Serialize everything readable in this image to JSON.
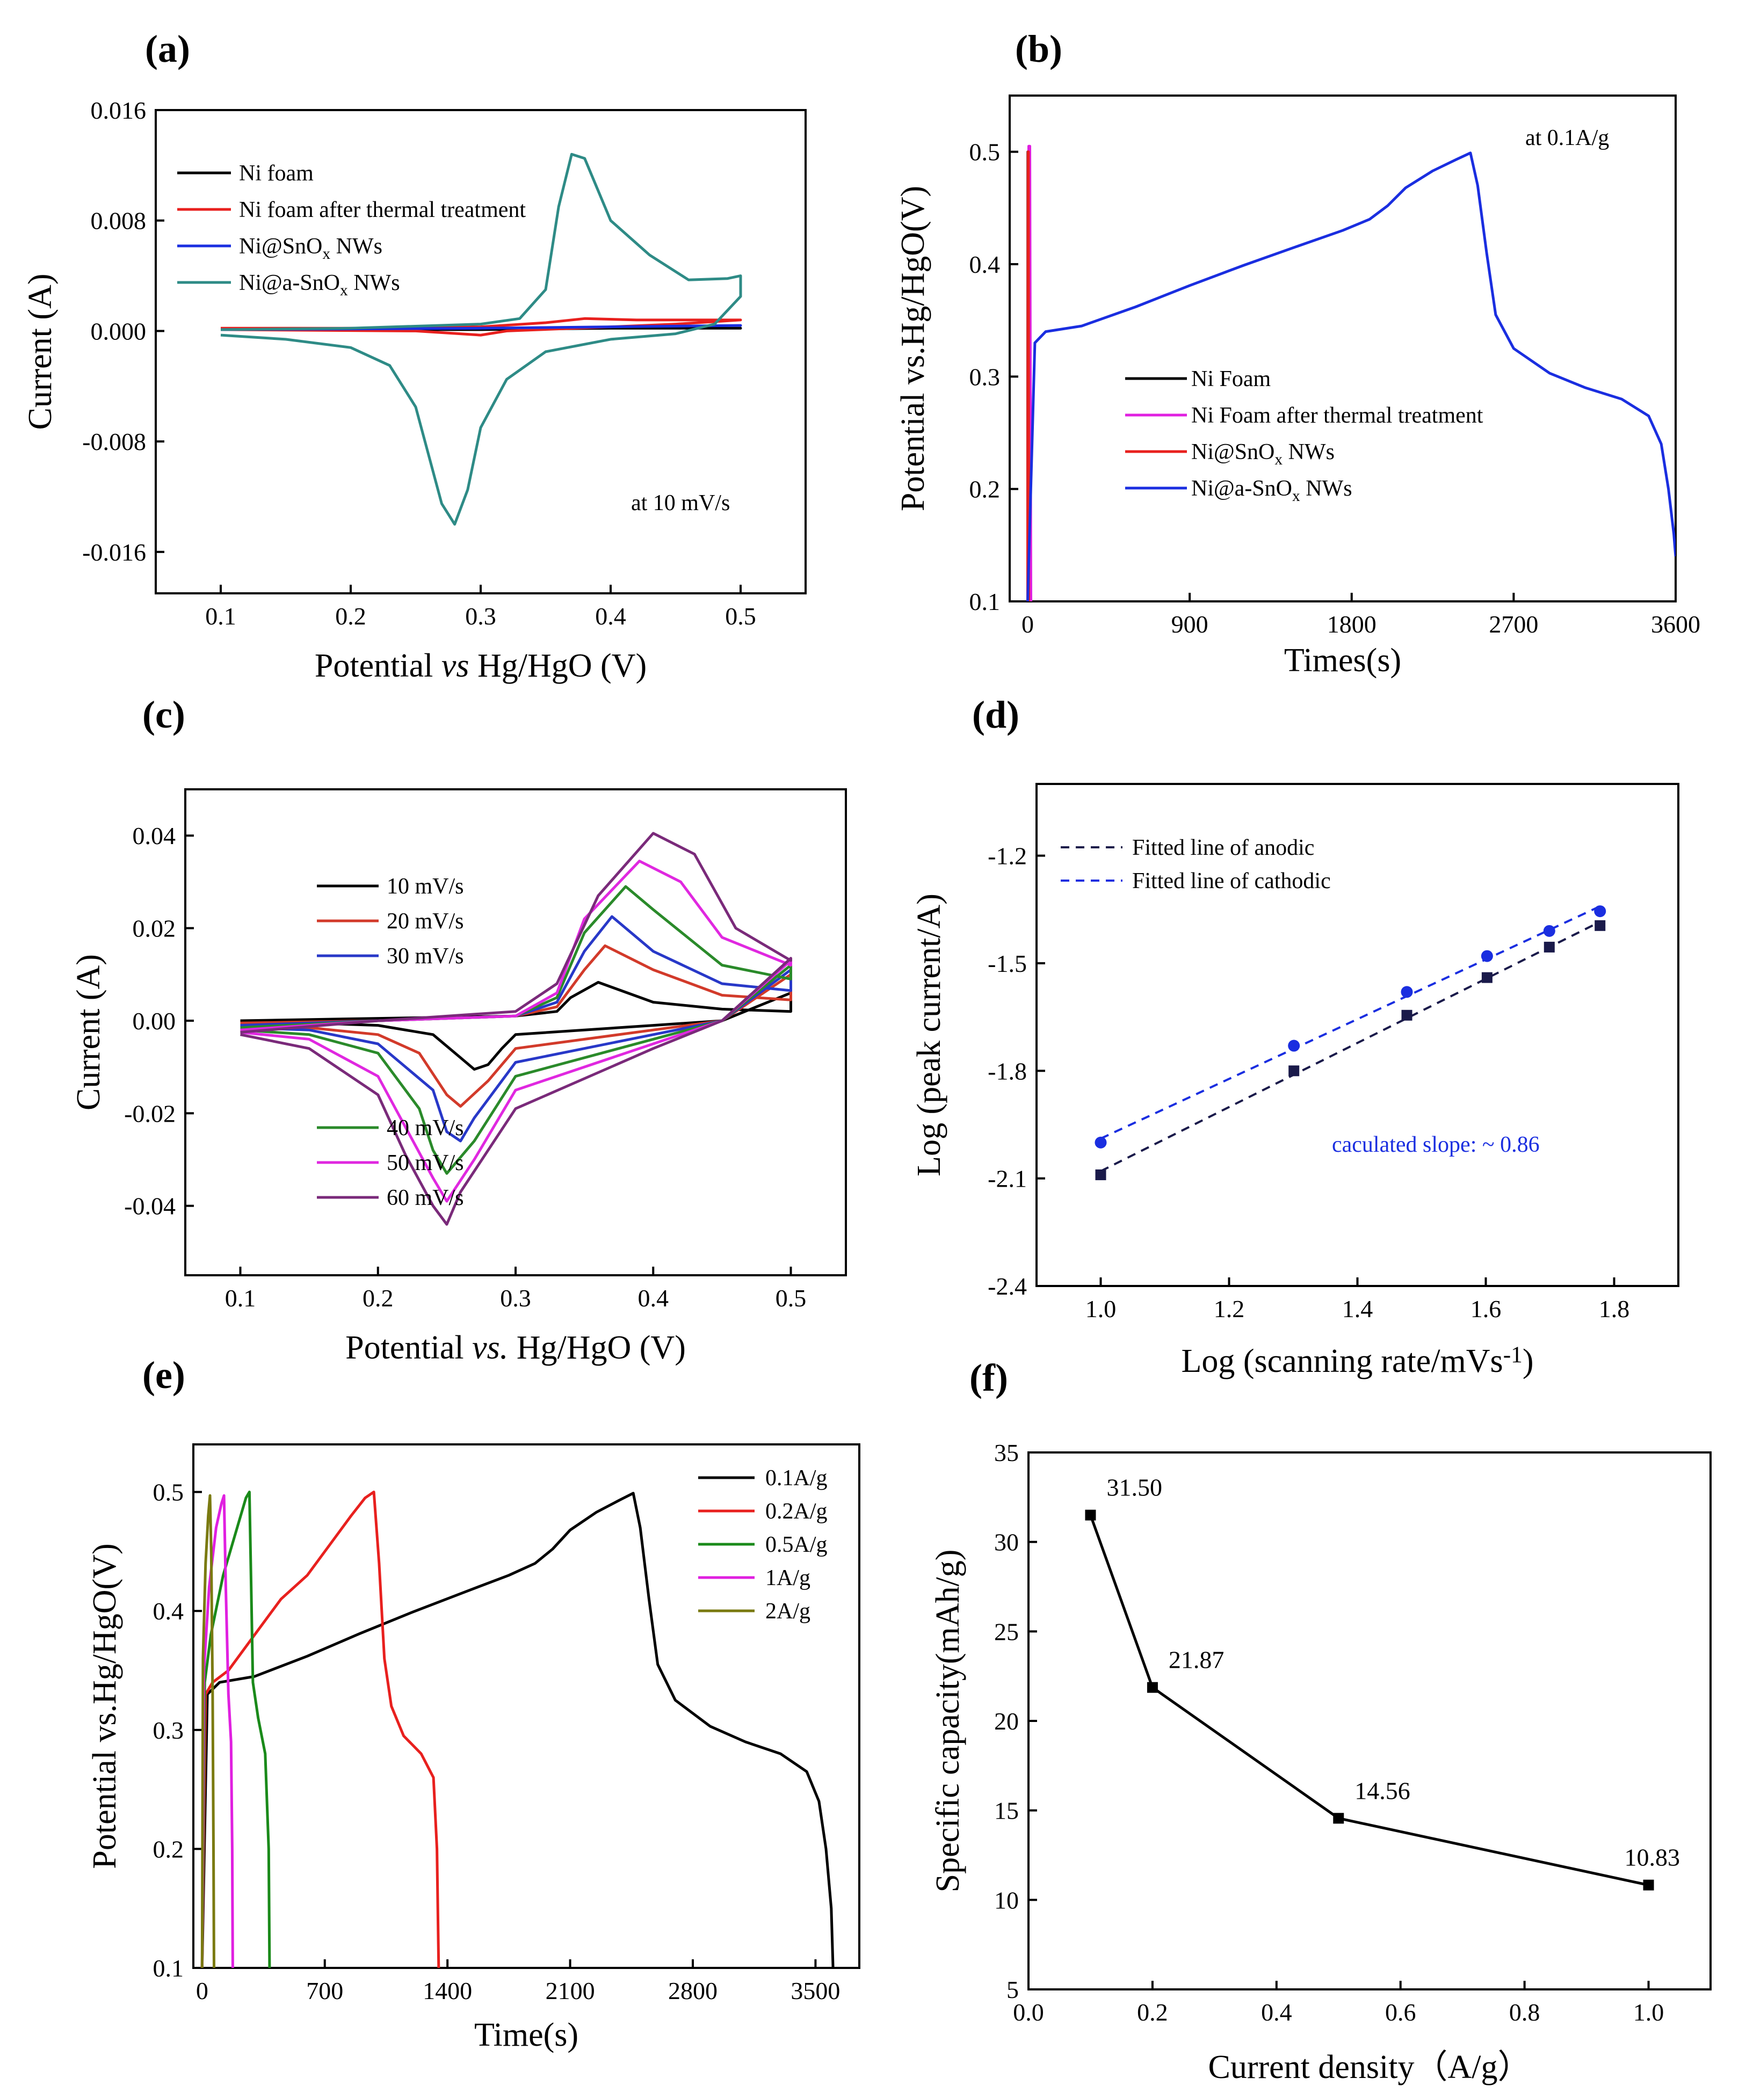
{
  "figure": {
    "panels": [
      "(a)",
      "(b)",
      "(c)",
      "(d)",
      "(e)",
      "(f)"
    ]
  },
  "chart_data": [
    {
      "id": "a",
      "panel_label": "(a)",
      "type": "line",
      "title": "",
      "xlabel": "Potential vs Hg/HgO (V)",
      "ylabel": "Current (A)",
      "xlim": [
        0.05,
        0.55
      ],
      "ylim": [
        -0.019,
        0.016
      ],
      "xticks": [
        0.1,
        0.2,
        0.3,
        0.4,
        0.5
      ],
      "xtick_labels": [
        "0.1",
        "0.2",
        "0.3",
        "0.4",
        "0.5"
      ],
      "yticks": [
        -0.016,
        -0.008,
        0.0,
        0.008,
        0.016
      ],
      "ytick_labels": [
        "-0.016",
        "-0.008",
        "0.000",
        "0.008",
        "0.016"
      ],
      "annotation": "at 10 mV/s",
      "legend_position": "top-left",
      "series": [
        {
          "name": "Ni foam",
          "color": "#000000",
          "x": [
            0.1,
            0.2,
            0.3,
            0.4,
            0.5,
            0.4,
            0.3,
            0.2,
            0.1
          ],
          "y": [
            0.0001,
            0.0001,
            0.0001,
            0.0002,
            0.0002,
            0.0002,
            0.0001,
            0.0001,
            0.0001
          ]
        },
        {
          "name": "Ni foam after thermal treatment",
          "color": "#e8201e",
          "x": [
            0.1,
            0.25,
            0.3,
            0.35,
            0.38,
            0.42,
            0.5,
            0.45,
            0.4,
            0.32,
            0.3,
            0.25,
            0.1
          ],
          "y": [
            0.0002,
            0.0002,
            0.0003,
            0.0006,
            0.0009,
            0.0008,
            0.0008,
            0.0005,
            0.0003,
            0.0,
            -0.0003,
            0.0,
            0.0001
          ]
        },
        {
          "name": "Ni@SnOx NWs",
          "color": "#1a2ee0",
          "x": [
            0.1,
            0.3,
            0.5,
            0.3,
            0.1
          ],
          "y": [
            0.0001,
            0.0002,
            0.0004,
            0.0002,
            0.0001
          ]
        },
        {
          "name": "Ni@a-SnOx NWs",
          "color": "#2e8b86",
          "x": [
            0.1,
            0.2,
            0.3,
            0.33,
            0.35,
            0.36,
            0.37,
            0.38,
            0.4,
            0.43,
            0.46,
            0.49,
            0.5,
            0.5,
            0.48,
            0.45,
            0.4,
            0.35,
            0.32,
            0.3,
            0.29,
            0.28,
            0.27,
            0.26,
            0.25,
            0.23,
            0.2,
            0.15,
            0.1
          ],
          "y": [
            0.0001,
            0.0002,
            0.0005,
            0.0009,
            0.003,
            0.009,
            0.0128,
            0.0125,
            0.008,
            0.0055,
            0.0037,
            0.0038,
            0.004,
            0.0025,
            0.0005,
            -0.0002,
            -0.0006,
            -0.0015,
            -0.0035,
            -0.007,
            -0.0115,
            -0.014,
            -0.0125,
            -0.009,
            -0.0055,
            -0.0025,
            -0.0012,
            -0.0006,
            -0.0003
          ]
        }
      ]
    },
    {
      "id": "b",
      "panel_label": "(b)",
      "type": "line",
      "title": "",
      "xlabel": "Times(s)",
      "ylabel": "Potential vs.Hg/HgO(V)",
      "xlim": [
        -100,
        3600
      ],
      "ylim": [
        0.1,
        0.55
      ],
      "xticks": [
        0,
        900,
        1800,
        2700,
        3600
      ],
      "xtick_labels": [
        "0",
        "900",
        "1800",
        "2700",
        "3600"
      ],
      "yticks": [
        0.1,
        0.2,
        0.3,
        0.4,
        0.5
      ],
      "ytick_labels": [
        "0.1",
        "0.2",
        "0.3",
        "0.4",
        "0.5"
      ],
      "annotation": "at 0.1A/g",
      "legend_position": "center-left",
      "series": [
        {
          "name": "Ni Foam",
          "color": "#000000",
          "x": [
            0,
            1,
            2,
            3
          ],
          "y": [
            0.1,
            0.5,
            0.5,
            0.1
          ]
        },
        {
          "name": "Ni Foam after thermal treatment",
          "color": "#e020e0",
          "x": [
            0,
            6,
            12,
            18
          ],
          "y": [
            0.1,
            0.505,
            0.505,
            0.1
          ]
        },
        {
          "name": "Ni@SnOx NWs",
          "color": "#e8201e",
          "x": [
            0,
            2,
            4,
            6
          ],
          "y": [
            0.1,
            0.5,
            0.5,
            0.1
          ]
        },
        {
          "name": "Ni@a-SnOx NWs",
          "color": "#1a2ee0",
          "x": [
            0,
            40,
            100,
            300,
            600,
            900,
            1200,
            1500,
            1750,
            1900,
            2000,
            2100,
            2250,
            2380,
            2460,
            2500,
            2550,
            2600,
            2700,
            2900,
            3100,
            3300,
            3450,
            3520,
            3560,
            3590,
            3600
          ],
          "y": [
            0.1,
            0.33,
            0.34,
            0.345,
            0.362,
            0.381,
            0.399,
            0.416,
            0.43,
            0.44,
            0.452,
            0.468,
            0.483,
            0.493,
            0.499,
            0.47,
            0.41,
            0.355,
            0.325,
            0.303,
            0.29,
            0.28,
            0.265,
            0.24,
            0.2,
            0.16,
            0.14
          ]
        }
      ]
    },
    {
      "id": "c",
      "panel_label": "(c)",
      "type": "line",
      "title": "",
      "xlabel": "Potential vs. Hg/HgO (V)",
      "ylabel": "Current (A)",
      "xlim": [
        0.06,
        0.54
      ],
      "ylim": [
        -0.055,
        0.05
      ],
      "xticks": [
        0.1,
        0.2,
        0.3,
        0.4,
        0.5
      ],
      "xtick_labels": [
        "0.1",
        "0.2",
        "0.3",
        "0.4",
        "0.5"
      ],
      "yticks": [
        -0.04,
        -0.02,
        0.0,
        0.02,
        0.04
      ],
      "ytick_labels": [
        "-0.04",
        "-0.02",
        "0.00",
        "0.02",
        "0.04"
      ],
      "legend_position": "split left",
      "series": [
        {
          "name": "10 mV/s",
          "color": "#000000",
          "x": [
            0.1,
            0.2,
            0.3,
            0.33,
            0.34,
            0.36,
            0.4,
            0.45,
            0.5,
            0.5,
            0.45,
            0.4,
            0.3,
            0.29,
            0.28,
            0.27,
            0.26,
            0.24,
            0.2,
            0.15,
            0.1
          ],
          "y": [
            0.0,
            0.0005,
            0.001,
            0.002,
            0.005,
            0.0083,
            0.004,
            0.0025,
            0.002,
            0.006,
            0.0,
            -0.001,
            -0.003,
            -0.006,
            -0.0095,
            -0.0105,
            -0.008,
            -0.003,
            -0.001,
            -0.0005,
            0.0
          ]
        },
        {
          "name": "20 mV/s",
          "color": "#d23a2a",
          "x": [
            0.1,
            0.2,
            0.3,
            0.33,
            0.35,
            0.365,
            0.4,
            0.45,
            0.5,
            0.5,
            0.45,
            0.4,
            0.3,
            0.28,
            0.26,
            0.25,
            0.23,
            0.2,
            0.15,
            0.1
          ],
          "y": [
            -0.0005,
            0.0,
            0.001,
            0.003,
            0.011,
            0.0162,
            0.011,
            0.0055,
            0.0045,
            0.01,
            0.0,
            -0.002,
            -0.006,
            -0.013,
            -0.0185,
            -0.016,
            -0.007,
            -0.003,
            -0.0015,
            -0.001
          ]
        },
        {
          "name": "30 mV/s",
          "color": "#2838c8",
          "x": [
            0.1,
            0.2,
            0.3,
            0.33,
            0.35,
            0.37,
            0.4,
            0.45,
            0.5,
            0.5,
            0.45,
            0.4,
            0.3,
            0.27,
            0.26,
            0.25,
            0.24,
            0.2,
            0.15,
            0.1
          ],
          "y": [
            -0.001,
            0.0,
            0.001,
            0.004,
            0.015,
            0.0225,
            0.015,
            0.008,
            0.0065,
            0.011,
            0.0,
            -0.003,
            -0.009,
            -0.021,
            -0.026,
            -0.024,
            -0.015,
            -0.005,
            -0.002,
            -0.0015
          ]
        },
        {
          "name": "40 mV/s",
          "color": "#2a8a2a",
          "x": [
            0.1,
            0.2,
            0.3,
            0.33,
            0.35,
            0.38,
            0.4,
            0.45,
            0.5,
            0.5,
            0.45,
            0.4,
            0.3,
            0.27,
            0.25,
            0.24,
            0.23,
            0.2,
            0.15,
            0.1
          ],
          "y": [
            -0.0015,
            0.0,
            0.001,
            0.005,
            0.019,
            0.029,
            0.024,
            0.012,
            0.009,
            0.012,
            0.0,
            -0.004,
            -0.012,
            -0.026,
            -0.033,
            -0.028,
            -0.019,
            -0.007,
            -0.003,
            -0.002
          ]
        },
        {
          "name": "50 mV/s",
          "color": "#e028e0",
          "x": [
            0.1,
            0.2,
            0.3,
            0.33,
            0.35,
            0.39,
            0.42,
            0.45,
            0.5,
            0.5,
            0.45,
            0.4,
            0.3,
            0.27,
            0.25,
            0.24,
            0.22,
            0.2,
            0.15,
            0.1
          ],
          "y": [
            -0.002,
            0.0,
            0.001,
            0.006,
            0.022,
            0.0345,
            0.03,
            0.018,
            0.012,
            0.013,
            0.0,
            -0.005,
            -0.015,
            -0.03,
            -0.039,
            -0.034,
            -0.023,
            -0.012,
            -0.004,
            -0.0025
          ]
        },
        {
          "name": "60 mV/s",
          "color": "#7a2a7a",
          "x": [
            0.1,
            0.2,
            0.3,
            0.33,
            0.36,
            0.4,
            0.43,
            0.46,
            0.5,
            0.5,
            0.45,
            0.4,
            0.3,
            0.26,
            0.25,
            0.24,
            0.22,
            0.2,
            0.15,
            0.1
          ],
          "y": [
            -0.0025,
            0.0,
            0.002,
            0.008,
            0.027,
            0.0405,
            0.036,
            0.02,
            0.013,
            0.0135,
            0.0,
            -0.006,
            -0.019,
            -0.037,
            -0.044,
            -0.04,
            -0.029,
            -0.016,
            -0.006,
            -0.003
          ]
        }
      ]
    },
    {
      "id": "d",
      "panel_label": "(d)",
      "type": "scatter",
      "title": "",
      "xlabel": "Log (scanning rate/mVs-1)",
      "ylabel": "Log (peak current/A)",
      "xlim": [
        0.9,
        1.9
      ],
      "ylim": [
        -2.4,
        -1.0
      ],
      "xticks": [
        1.0,
        1.2,
        1.4,
        1.6,
        1.8
      ],
      "xtick_labels": [
        "1.0",
        "1.2",
        "1.4",
        "1.6",
        "1.8"
      ],
      "yticks": [
        -2.4,
        -2.1,
        -1.8,
        -1.5,
        -1.2
      ],
      "ytick_labels": [
        "-2.4",
        "-2.1",
        "-1.8",
        "-1.5",
        "-1.2"
      ],
      "annotation": "caculated slope: ~ 0.86",
      "legend_position": "top-left",
      "series": [
        {
          "name": "Fitted line of anodic",
          "color": "#1a1a4a",
          "marker": "square",
          "x": [
            1.0,
            1.301,
            1.477,
            1.602,
            1.699,
            1.778
          ],
          "y": [
            -2.09,
            -1.8,
            -1.645,
            -1.54,
            -1.455,
            -1.395
          ]
        },
        {
          "name": "Fitted line of cathodic",
          "color": "#1a2ee0",
          "marker": "circle",
          "x": [
            1.0,
            1.301,
            1.477,
            1.602,
            1.699,
            1.778
          ],
          "y": [
            -2.0,
            -1.73,
            -1.58,
            -1.48,
            -1.41,
            -1.355
          ]
        }
      ]
    },
    {
      "id": "e",
      "panel_label": "(e)",
      "type": "line",
      "title": "",
      "xlabel": "Time(s)",
      "ylabel": "Potential vs.Hg/HgO(V)",
      "xlim": [
        -50,
        3750
      ],
      "ylim": [
        0.1,
        0.54
      ],
      "xticks": [
        0,
        700,
        1400,
        2100,
        2800,
        3500
      ],
      "xtick_labels": [
        "0",
        "700",
        "1400",
        "2100",
        "2800",
        "3500"
      ],
      "yticks": [
        0.1,
        0.2,
        0.3,
        0.4,
        0.5
      ],
      "ytick_labels": [
        "0.1",
        "0.2",
        "0.3",
        "0.4",
        "0.5"
      ],
      "legend_position": "top-right",
      "series": [
        {
          "name": "0.1A/g",
          "color": "#000000",
          "x": [
            0,
            30,
            100,
            300,
            600,
            900,
            1200,
            1500,
            1750,
            1900,
            2000,
            2100,
            2250,
            2380,
            2460,
            2500,
            2550,
            2600,
            2700,
            2900,
            3100,
            3300,
            3450,
            3520,
            3560,
            3590,
            3600
          ],
          "y": [
            0.1,
            0.33,
            0.34,
            0.345,
            0.362,
            0.381,
            0.399,
            0.416,
            0.43,
            0.44,
            0.452,
            0.468,
            0.483,
            0.493,
            0.499,
            0.47,
            0.41,
            0.355,
            0.325,
            0.303,
            0.29,
            0.28,
            0.265,
            0.24,
            0.2,
            0.15,
            0.1
          ]
        },
        {
          "name": "0.2A/g",
          "color": "#e8201e",
          "x": [
            0,
            20,
            60,
            150,
            300,
            450,
            600,
            750,
            850,
            930,
            980,
            1010,
            1040,
            1080,
            1150,
            1250,
            1320,
            1340,
            1350
          ],
          "y": [
            0.1,
            0.33,
            0.34,
            0.35,
            0.38,
            0.41,
            0.43,
            0.46,
            0.48,
            0.495,
            0.5,
            0.44,
            0.36,
            0.32,
            0.295,
            0.28,
            0.26,
            0.2,
            0.1
          ]
        },
        {
          "name": "0.5A/g",
          "color": "#1a8a1a",
          "x": [
            0,
            15,
            50,
            120,
            200,
            250,
            270,
            280,
            290,
            320,
            360,
            380,
            385
          ],
          "y": [
            0.1,
            0.34,
            0.38,
            0.43,
            0.47,
            0.495,
            0.5,
            0.42,
            0.34,
            0.31,
            0.28,
            0.2,
            0.1
          ]
        },
        {
          "name": "1A/g",
          "color": "#e020e0",
          "x": [
            0,
            10,
            40,
            80,
            110,
            125,
            135,
            150,
            165,
            172,
            175
          ],
          "y": [
            0.1,
            0.35,
            0.42,
            0.47,
            0.49,
            0.497,
            0.42,
            0.33,
            0.29,
            0.2,
            0.1
          ]
        },
        {
          "name": "2A/g",
          "color": "#7a7a10",
          "x": [
            0,
            5,
            20,
            35,
            45,
            52,
            60,
            65,
            68
          ],
          "y": [
            0.1,
            0.36,
            0.44,
            0.48,
            0.497,
            0.45,
            0.33,
            0.2,
            0.1
          ]
        }
      ]
    },
    {
      "id": "f",
      "panel_label": "(f)",
      "type": "line",
      "title": "",
      "xlabel": "Current density（A/g）",
      "ylabel": "Specific capacity(mAh/g)",
      "xlim": [
        0.0,
        1.1
      ],
      "ylim": [
        5,
        35
      ],
      "xticks": [
        0.0,
        0.2,
        0.4,
        0.6,
        0.8,
        1.0
      ],
      "xtick_labels": [
        "0.0",
        "0.2",
        "0.4",
        "0.6",
        "0.8",
        "1.0"
      ],
      "yticks": [
        5,
        10,
        15,
        20,
        25,
        30,
        35
      ],
      "ytick_labels": [
        "5",
        "10",
        "15",
        "20",
        "25",
        "30",
        "35"
      ],
      "series": [
        {
          "name": "Specific capacity",
          "color": "#000000",
          "marker": "square",
          "x": [
            0.1,
            0.2,
            0.5,
            1.0
          ],
          "y": [
            31.5,
            21.87,
            14.56,
            10.83
          ],
          "labels": [
            "31.50",
            "21.87",
            "14.56",
            "10.83"
          ]
        }
      ]
    }
  ]
}
